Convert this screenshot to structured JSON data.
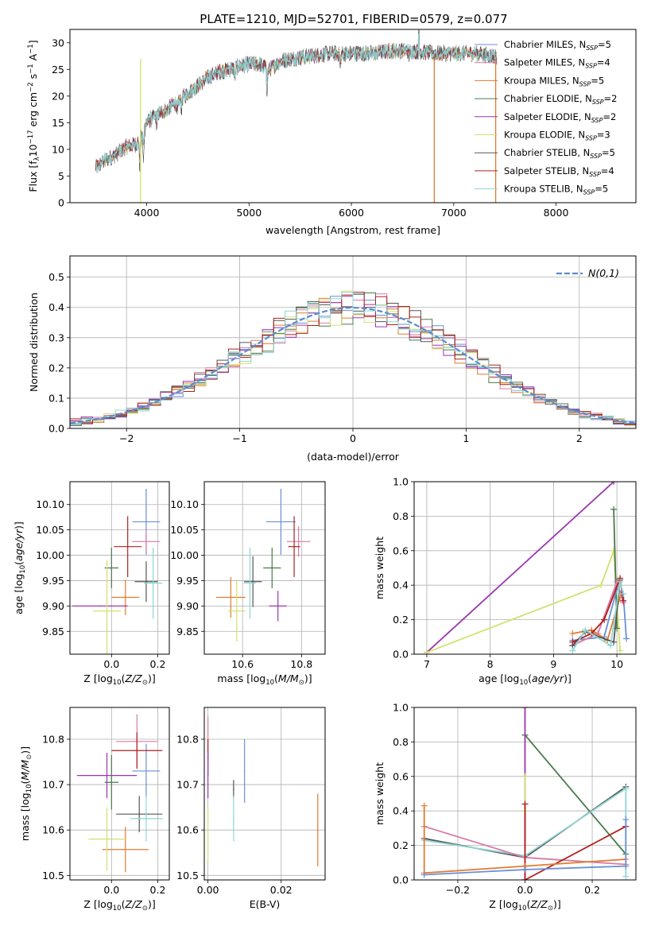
{
  "figure_title": "PLATE=1210, MJD=52701, FIBERID=0579, z=0.077",
  "colors": {
    "chabrier_miles": "#6a8fd6",
    "salpeter_miles": "#d97aa3",
    "kroupa_miles": "#e07b30",
    "chabrier_elodie": "#4a7a4a",
    "salpeter_elodie": "#9b35b0",
    "kroupa_elodie": "#d3e070",
    "chabrier_stelib": "#555555",
    "salpeter_stelib": "#b02020",
    "kroupa_stelib": "#8ed6d6",
    "normal_curve": "#5b8bd0",
    "grid": "#b0b0b0"
  },
  "legend_entries": [
    {
      "pre": "Chabrier MILES, N",
      "n": "=5",
      "color": "#6a8fd6"
    },
    {
      "pre": "Salpeter MILES, N",
      "n": "=4",
      "color": "#d97aa3"
    },
    {
      "pre": "Kroupa MILES, N",
      "n": "=5",
      "color": "#e07b30"
    },
    {
      "pre": "Chabrier ELODIE, N",
      "n": "=2",
      "color": "#4a7a4a"
    },
    {
      "pre": "Salpeter ELODIE, N",
      "n": "=2",
      "color": "#9b35b0"
    },
    {
      "pre": "Kroupa ELODIE, N",
      "n": "=3",
      "color": "#d3e070"
    },
    {
      "pre": "Chabrier STELIB, N",
      "n": "=5",
      "color": "#555555"
    },
    {
      "pre": "Salpeter STELIB, N",
      "n": "=4",
      "color": "#b02020"
    },
    {
      "pre": "Kroupa STELIB, N",
      "n": "=5",
      "color": "#8ed6d6"
    }
  ],
  "legend_subscript": "SSP",
  "chart_data": [
    {
      "type": "line",
      "xlabel": "wavelength [Angstrom, rest frame]",
      "ylabel": "Flux [f_λ10^-17 erg cm^-2 s^-1 A^-1]",
      "xlim": [
        3250,
        8780
      ],
      "ylim": [
        0,
        32.5
      ],
      "xticks": [
        4000,
        5000,
        6000,
        7000,
        8000
      ],
      "yticks": [
        0,
        5,
        10,
        15,
        20,
        25,
        30
      ],
      "spectrum_continuum": {
        "x": [
          3500,
          3600,
          3700,
          3800,
          3900,
          3950,
          4000,
          4100,
          4200,
          4300,
          4400,
          4500,
          4600,
          4700,
          4800,
          4900,
          5000,
          5100,
          5200,
          5300,
          5400,
          5600,
          5800,
          6000,
          6200,
          6400,
          6600,
          6800,
          7000,
          7200,
          7400,
          7600,
          7800,
          8000,
          8200,
          8400,
          8600
        ],
        "y": [
          6.5,
          8.0,
          9.0,
          10.5,
          11.0,
          12.5,
          15.0,
          16.5,
          17.5,
          19.0,
          20.5,
          22.0,
          23.5,
          24.5,
          25.0,
          25.5,
          26.0,
          26.0,
          25.0,
          26.5,
          27.0,
          27.5,
          28.0,
          28.0,
          28.0,
          28.5,
          28.5,
          28.0,
          28.0,
          28.0,
          27.5,
          27.0,
          26.5,
          26.5,
          26.0,
          25.5,
          25.0
        ]
      }
    },
    {
      "type": "histogram",
      "xlabel": "(data-model)/error",
      "ylabel": "Normed distribution",
      "xlim": [
        -2.5,
        2.5
      ],
      "ylim": [
        0,
        0.57
      ],
      "xticks": [
        -2,
        -1,
        0,
        1,
        2
      ],
      "yticks": [
        0.0,
        0.1,
        0.2,
        0.3,
        0.4,
        0.5
      ],
      "legend": "N(0,1)",
      "bin_width": 0.1
    },
    {
      "type": "scatter",
      "xlabel": "Z [log10(Z/Z☉)]",
      "ylabel": "age [log10(age/yr)]",
      "xlim": [
        -0.18,
        0.25
      ],
      "ylim": [
        9.805,
        10.145
      ],
      "xticks": [
        0.0,
        0.2
      ],
      "yticks": [
        9.85,
        9.9,
        9.95,
        10.0,
        10.05,
        10.1
      ],
      "points": [
        {
          "x": 0.15,
          "y": 10.066,
          "xerr": 0.06,
          "yerr": 0.065,
          "c": "chabrier_miles"
        },
        {
          "x": 0.15,
          "y": 10.027,
          "xerr": 0.06,
          "yerr": 0.02,
          "c": "salpeter_miles"
        },
        {
          "x": 0.06,
          "y": 9.917,
          "xerr": 0.06,
          "yerr": 0.035,
          "c": "kroupa_miles"
        },
        {
          "x": 0.0,
          "y": 9.975,
          "xerr": 0.03,
          "yerr": 0.04,
          "c": "chabrier_elodie"
        },
        {
          "x": -0.05,
          "y": 9.9,
          "xerr": 0.12,
          "yerr": 0.0,
          "c": "salpeter_elodie"
        },
        {
          "x": -0.02,
          "y": 9.89,
          "xerr": 0.06,
          "yerr": 0.1,
          "c": "kroupa_elodie"
        },
        {
          "x": 0.15,
          "y": 9.948,
          "xerr": 0.05,
          "yerr": 0.04,
          "c": "chabrier_stelib"
        },
        {
          "x": 0.07,
          "y": 10.017,
          "xerr": 0.06,
          "yerr": 0.06,
          "c": "salpeter_stelib"
        },
        {
          "x": 0.18,
          "y": 9.945,
          "xerr": 0.04,
          "yerr": 0.07,
          "c": "kroupa_stelib"
        }
      ]
    },
    {
      "type": "scatter",
      "xlabel": "mass [log10(M/M☉)]",
      "ylabel": "",
      "xlim": [
        10.47,
        10.88
      ],
      "ylim": [
        9.805,
        10.145
      ],
      "xticks": [
        10.6,
        10.8
      ],
      "yticks": [
        9.85,
        9.9,
        9.95,
        10.0,
        10.05,
        10.1
      ],
      "points": [
        {
          "x": 10.73,
          "y": 10.066,
          "xerr": 0.05,
          "yerr": 0.065,
          "c": "chabrier_miles"
        },
        {
          "x": 10.79,
          "y": 10.027,
          "xerr": 0.04,
          "yerr": 0.03,
          "c": "salpeter_miles"
        },
        {
          "x": 10.56,
          "y": 9.917,
          "xerr": 0.05,
          "yerr": 0.04,
          "c": "kroupa_miles"
        },
        {
          "x": 10.7,
          "y": 9.975,
          "xerr": 0.03,
          "yerr": 0.04,
          "c": "chabrier_elodie"
        },
        {
          "x": 10.72,
          "y": 9.9,
          "xerr": 0.03,
          "yerr": 0.03,
          "c": "salpeter_elodie"
        },
        {
          "x": 10.58,
          "y": 9.89,
          "xerr": 0.03,
          "yerr": 0.06,
          "c": "kroupa_elodie"
        },
        {
          "x": 10.635,
          "y": 9.948,
          "xerr": 0.03,
          "yerr": 0.05,
          "c": "chabrier_stelib"
        },
        {
          "x": 10.775,
          "y": 10.017,
          "xerr": 0.02,
          "yerr": 0.06,
          "c": "salpeter_stelib"
        },
        {
          "x": 10.625,
          "y": 9.945,
          "xerr": 0.02,
          "yerr": 0.07,
          "c": "kroupa_stelib"
        }
      ]
    },
    {
      "type": "line",
      "xlabel": "age [log10(age/yr)]",
      "ylabel": "mass weight",
      "xlim": [
        6.8,
        10.3
      ],
      "ylim": [
        0,
        1.0
      ],
      "xticks": [
        7,
        8,
        9,
        10
      ],
      "yticks": [
        0.0,
        0.2,
        0.4,
        0.6,
        0.8,
        1.0
      ],
      "series": [
        {
          "c": "salpeter_elodie",
          "x": [
            7.0,
            9.95
          ],
          "y": [
            0.01,
            1.0
          ]
        },
        {
          "c": "kroupa_elodie",
          "x": [
            7.0,
            9.75,
            9.95,
            10.05
          ],
          "y": [
            0.01,
            0.4,
            0.6,
            0.02
          ]
        },
        {
          "c": "chabrier_elodie",
          "x": [
            9.95,
            10.0
          ],
          "y": [
            0.84,
            0.15
          ]
        },
        {
          "c": "chabrier_miles",
          "x": [
            9.3,
            9.8,
            10.0,
            10.1,
            10.15
          ],
          "y": [
            0.08,
            0.1,
            0.38,
            0.35,
            0.09
          ]
        },
        {
          "c": "salpeter_miles",
          "x": [
            9.3,
            9.7,
            10.0,
            10.1
          ],
          "y": [
            0.05,
            0.12,
            0.42,
            0.3
          ]
        },
        {
          "c": "kroupa_miles",
          "x": [
            9.3,
            9.6,
            9.85,
            10.05
          ],
          "y": [
            0.12,
            0.14,
            0.08,
            0.33
          ]
        },
        {
          "c": "chabrier_stelib",
          "x": [
            9.3,
            9.5,
            9.95,
            10.05
          ],
          "y": [
            0.05,
            0.13,
            0.07,
            0.43
          ]
        },
        {
          "c": "salpeter_stelib",
          "x": [
            9.3,
            9.6,
            9.8,
            10.05,
            10.1
          ],
          "y": [
            0.07,
            0.12,
            0.2,
            0.44,
            0.31
          ]
        },
        {
          "c": "kroupa_stelib",
          "x": [
            9.3,
            9.5,
            9.9,
            10.05,
            10.1
          ],
          "y": [
            0.02,
            0.14,
            0.05,
            0.42,
            0.35
          ]
        }
      ]
    },
    {
      "type": "scatter",
      "xlabel": "Z [log10(Z/Z☉)]",
      "ylabel": "mass [log10(M/M☉)]",
      "xlim": [
        -0.18,
        0.25
      ],
      "ylim": [
        10.49,
        10.87
      ],
      "xticks": [
        0.0,
        0.2
      ],
      "yticks": [
        10.5,
        10.6,
        10.7,
        10.8
      ],
      "points": [
        {
          "x": 0.15,
          "y": 10.73,
          "xerr": 0.06,
          "yerr": 0.06,
          "c": "chabrier_miles"
        },
        {
          "x": 0.11,
          "y": 10.795,
          "xerr": 0.09,
          "yerr": 0.06,
          "c": "salpeter_miles"
        },
        {
          "x": 0.06,
          "y": 10.557,
          "xerr": 0.1,
          "yerr": 0.05,
          "c": "kroupa_miles"
        },
        {
          "x": 0.0,
          "y": 10.705,
          "xerr": 0.03,
          "yerr": 0.06,
          "c": "chabrier_elodie"
        },
        {
          "x": -0.02,
          "y": 10.72,
          "xerr": 0.13,
          "yerr": 0.05,
          "c": "salpeter_elodie"
        },
        {
          "x": -0.02,
          "y": 10.58,
          "xerr": 0.08,
          "yerr": 0.07,
          "c": "kroupa_elodie"
        },
        {
          "x": 0.12,
          "y": 10.635,
          "xerr": 0.1,
          "yerr": 0.04,
          "c": "chabrier_stelib"
        },
        {
          "x": 0.11,
          "y": 10.775,
          "xerr": 0.11,
          "yerr": 0.04,
          "c": "salpeter_stelib"
        },
        {
          "x": 0.15,
          "y": 10.625,
          "xerr": 0.07,
          "yerr": 0.05,
          "c": "kroupa_stelib"
        }
      ]
    },
    {
      "type": "scatter",
      "xlabel": "E(B-V)",
      "ylabel": "",
      "xlim": [
        -0.001,
        0.032
      ],
      "ylim": [
        10.49,
        10.87
      ],
      "xticks": [
        0.0,
        0.02
      ],
      "yticks": [
        10.5,
        10.6,
        10.7,
        10.8
      ],
      "points": [
        {
          "x": 0.0,
          "y": 10.8,
          "xerr": 0,
          "yerr": 0.05,
          "c": "salpeter_miles"
        },
        {
          "x": 0.0,
          "y": 10.76,
          "xerr": 0,
          "yerr": 0.04,
          "c": "salpeter_stelib"
        },
        {
          "x": 0.0,
          "y": 10.59,
          "xerr": 0,
          "yerr": 0.06,
          "c": "kroupa_elodie"
        },
        {
          "x": 0.0,
          "y": 10.72,
          "xerr": 0,
          "yerr": 0.05,
          "c": "salpeter_elodie"
        },
        {
          "x": 0.01,
          "y": 10.73,
          "xerr": 0,
          "yerr": 0.07,
          "c": "chabrier_miles"
        },
        {
          "x": 0.007,
          "y": 10.69,
          "xerr": 0,
          "yerr": 0.02,
          "c": "chabrier_stelib"
        },
        {
          "x": 0.007,
          "y": 10.625,
          "xerr": 0,
          "yerr": 0.05,
          "c": "kroupa_stelib"
        },
        {
          "x": 0.03,
          "y": 10.6,
          "xerr": 0,
          "yerr": 0.08,
          "c": "kroupa_miles"
        }
      ]
    },
    {
      "type": "line",
      "xlabel": "Z [log10(Z/Z☉)]",
      "ylabel": "mass weight",
      "xlim": [
        -0.33,
        0.33
      ],
      "ylim": [
        0,
        1.0
      ],
      "xticks": [
        -0.2,
        0.0,
        0.2
      ],
      "yticks": [
        0.0,
        0.2,
        0.4,
        0.6,
        0.8,
        1.0
      ],
      "series": [
        {
          "c": "chabrier_elodie",
          "x": [
            0.0,
            0.3
          ],
          "y": [
            0.84,
            0.15
          ]
        },
        {
          "c": "salpeter_elodie",
          "x": [
            0.0,
            0.0
          ],
          "y": [
            1.0,
            0.0
          ]
        },
        {
          "c": "kroupa_elodie",
          "x": [
            0.0,
            0.0
          ],
          "y": [
            0.6,
            0.4
          ]
        },
        {
          "c": "chabrier_stelib",
          "x": [
            -0.3,
            0.0,
            0.3
          ],
          "y": [
            0.24,
            0.13,
            0.54
          ]
        },
        {
          "c": "kroupa_stelib",
          "x": [
            -0.3,
            0.0,
            0.3,
            0.3
          ],
          "y": [
            0.23,
            0.14,
            0.53,
            0.02
          ]
        },
        {
          "c": "salpeter_miles",
          "x": [
            -0.3,
            0.0,
            0.3
          ],
          "y": [
            0.31,
            0.13,
            0.09
          ]
        },
        {
          "c": "salpeter_stelib",
          "x": [
            0.0,
            0.0,
            0.3
          ],
          "y": [
            0.44,
            0.0,
            0.31
          ]
        },
        {
          "c": "kroupa_miles",
          "x": [
            -0.3,
            -0.3,
            0.0,
            0.3
          ],
          "y": [
            0.43,
            0.04,
            0.08,
            0.12
          ]
        },
        {
          "c": "chabrier_miles",
          "x": [
            -0.3,
            0.0,
            0.3,
            0.3
          ],
          "y": [
            0.03,
            0.06,
            0.08,
            0.35
          ]
        }
      ]
    }
  ]
}
